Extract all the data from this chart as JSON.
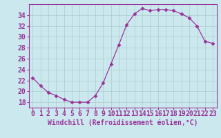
{
  "x": [
    0,
    1,
    2,
    3,
    4,
    5,
    6,
    7,
    8,
    9,
    10,
    11,
    12,
    13,
    14,
    15,
    16,
    17,
    18,
    19,
    20,
    21,
    22,
    23
  ],
  "y": [
    22.5,
    21.0,
    19.8,
    19.2,
    18.5,
    18.0,
    18.0,
    18.0,
    19.2,
    21.5,
    25.0,
    28.5,
    32.2,
    34.2,
    35.2,
    34.8,
    35.0,
    35.0,
    34.8,
    34.2,
    33.5,
    32.0,
    29.2,
    28.8
  ],
  "line_color": "#993399",
  "marker": "D",
  "marker_size": 2.5,
  "background_color": "#cce8ef",
  "grid_color": "#aacccc",
  "xlabel": "Windchill (Refroidissement éolien,°C)",
  "xlabel_color": "#993399",
  "tick_color": "#993399",
  "spine_color": "#993399",
  "ylim": [
    17.0,
    36.0
  ],
  "yticks": [
    18,
    20,
    22,
    24,
    26,
    28,
    30,
    32,
    34
  ],
  "xlim": [
    -0.5,
    23.5
  ],
  "xticks": [
    0,
    1,
    2,
    3,
    4,
    5,
    6,
    7,
    8,
    9,
    10,
    11,
    12,
    13,
    14,
    15,
    16,
    17,
    18,
    19,
    20,
    21,
    22,
    23
  ],
  "tick_fontsize": 7.0,
  "xlabel_fontsize": 7.0,
  "ytick_fontsize": 7.0
}
